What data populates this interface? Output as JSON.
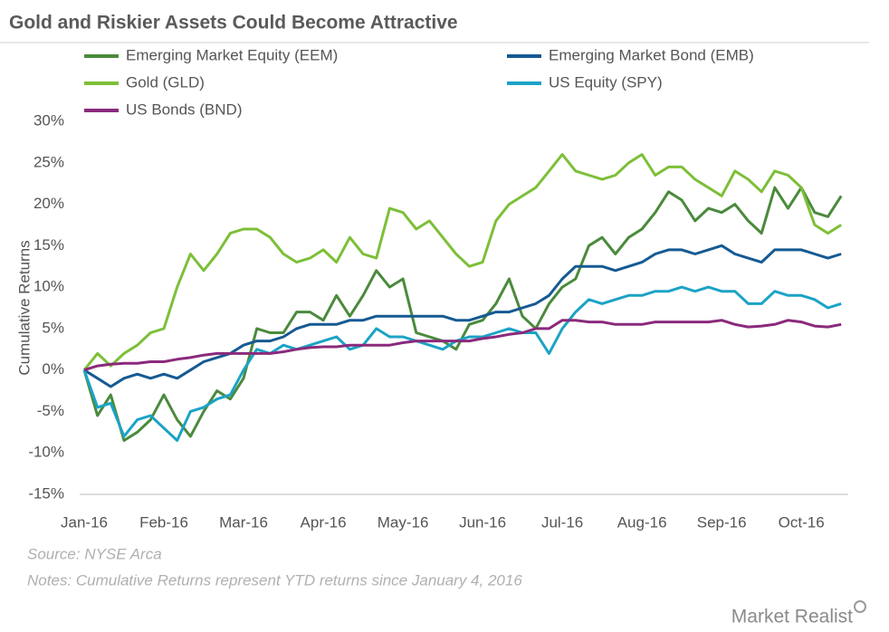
{
  "chart_data": {
    "type": "line",
    "title": "Gold and Riskier Assets Could Become Attractive",
    "y_label": "Cumulative Returns",
    "source": "Source: NYSE Arca",
    "notes": "Notes: Cumulative Returns represent YTD returns since January 4, 2016",
    "brand": "Market Realist",
    "categories": [
      "Jan-16",
      null,
      null,
      null,
      null,
      null,
      "Feb-16",
      null,
      null,
      null,
      null,
      null,
      "Mar-16",
      null,
      null,
      null,
      null,
      null,
      "Apr-16",
      null,
      null,
      null,
      null,
      null,
      "May-16",
      null,
      null,
      null,
      null,
      null,
      "Jun-16",
      null,
      null,
      null,
      null,
      null,
      "Jul-16",
      null,
      null,
      null,
      null,
      null,
      "Aug-16",
      null,
      null,
      null,
      null,
      null,
      "Sep-16",
      null,
      null,
      null,
      null,
      null,
      "Oct-16",
      null,
      null,
      null
    ],
    "ylim": [
      -15,
      30
    ],
    "yticks": [
      {
        "value": -15,
        "label": "-15%"
      },
      {
        "value": -10,
        "label": "-10%"
      },
      {
        "value": -5,
        "label": "-5%"
      },
      {
        "value": 0,
        "label": "0%"
      },
      {
        "value": 5,
        "label": "5%"
      },
      {
        "value": 10,
        "label": "10%"
      },
      {
        "value": 15,
        "label": "15%"
      },
      {
        "value": 20,
        "label": "20%"
      },
      {
        "value": 25,
        "label": "25%"
      },
      {
        "value": 30,
        "label": "30%"
      }
    ],
    "grid": false,
    "series": [
      {
        "name": "Emerging Market Equity (EEM)",
        "color": "#4a8a3c",
        "values": [
          0,
          -5.5,
          -3,
          -8.5,
          -7.5,
          -6,
          -3,
          -6,
          -8,
          -5,
          -2.5,
          -3.5,
          -1,
          5,
          4.5,
          4.5,
          7,
          7,
          6,
          9,
          6.5,
          9,
          12,
          10,
          11,
          4.5,
          4,
          3.5,
          2.5,
          5.5,
          6,
          8,
          11,
          6.5,
          5,
          8,
          10,
          11,
          15,
          16,
          14,
          16,
          17,
          19,
          21.5,
          20.5,
          18,
          19.5,
          19,
          20,
          18,
          16.5,
          22,
          19.5,
          22,
          19,
          18.5,
          21
        ]
      },
      {
        "name": "Emerging Market Bond (EMB)",
        "color": "#155a93",
        "values": [
          0,
          -1,
          -2,
          -1,
          -0.5,
          -1,
          -0.5,
          -1,
          0,
          1,
          1.5,
          2,
          3,
          3.5,
          3.5,
          4,
          5,
          5.5,
          5.5,
          5.5,
          6,
          6,
          6.5,
          6.5,
          6.5,
          6.5,
          6.5,
          6.5,
          6,
          6,
          6.5,
          7,
          7,
          7.5,
          8,
          9,
          11,
          12.5,
          12.5,
          12.5,
          12,
          12.5,
          13,
          14,
          14.5,
          14.5,
          14,
          14.5,
          15,
          14,
          13.5,
          13,
          14.5,
          14.5,
          14.5,
          14,
          13.5,
          14
        ]
      },
      {
        "name": "Gold (GLD)",
        "color": "#7dbf38",
        "values": [
          0,
          2,
          0.5,
          2,
          3,
          4.5,
          5,
          10,
          14,
          12,
          14,
          16.5,
          17,
          17,
          16,
          14,
          13,
          13.5,
          14.5,
          13,
          16,
          14,
          13.5,
          19.5,
          19,
          17,
          18,
          16,
          14,
          12.5,
          13,
          18,
          20,
          21,
          22,
          24,
          26,
          24,
          23.5,
          23,
          23.5,
          25,
          26,
          23.5,
          24.5,
          24.5,
          23,
          22,
          21,
          24,
          23,
          21.5,
          24,
          23.5,
          22,
          17.5,
          16.5,
          17.5
        ]
      },
      {
        "name": "US Equity (SPY)",
        "color": "#1ba3c6",
        "values": [
          0,
          -4.5,
          -4,
          -8,
          -6,
          -5.5,
          -7,
          -8.5,
          -5,
          -4.5,
          -3.5,
          -3,
          0,
          2.5,
          2,
          3,
          2.5,
          3,
          3.5,
          4,
          2.5,
          3,
          5,
          4,
          4,
          3.5,
          3,
          2.5,
          3.5,
          4,
          4,
          4.5,
          5,
          4.5,
          4.5,
          2,
          5,
          7,
          8.5,
          8,
          8.5,
          9,
          9,
          9.5,
          9.5,
          10,
          9.5,
          10,
          9.5,
          9.5,
          8,
          8,
          9.5,
          9,
          9,
          8.5,
          7.5,
          8
        ]
      },
      {
        "name": "US Bonds (BND)",
        "color": "#8a2a7c",
        "values": [
          0,
          0.5,
          0.7,
          0.8,
          0.8,
          1,
          1,
          1.3,
          1.5,
          1.8,
          2,
          2,
          2,
          2,
          2,
          2.2,
          2.5,
          2.7,
          2.8,
          2.8,
          3,
          3,
          3,
          3,
          3.3,
          3.5,
          3.5,
          3.5,
          3.5,
          3.5,
          3.8,
          4,
          4.3,
          4.5,
          5,
          5,
          6,
          6,
          5.8,
          5.8,
          5.5,
          5.5,
          5.5,
          5.8,
          5.8,
          5.8,
          5.8,
          5.8,
          6,
          5.5,
          5.2,
          5.3,
          5.5,
          6,
          5.8,
          5.3,
          5.2,
          5.5
        ]
      }
    ]
  }
}
